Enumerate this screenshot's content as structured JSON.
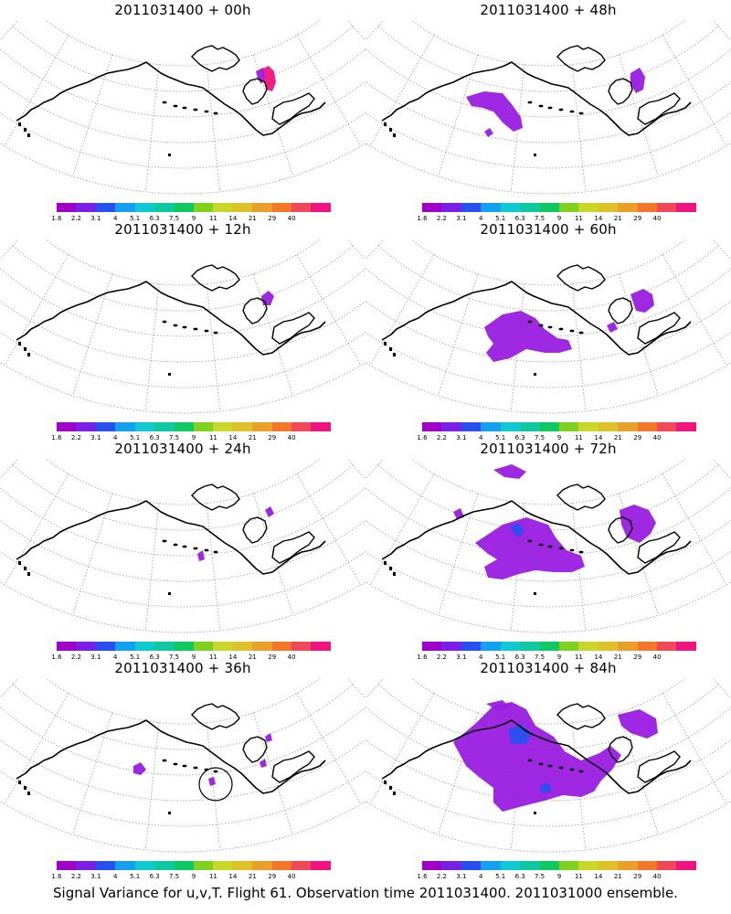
{
  "footer": "Signal Variance for u,v,T. Flight 61. Observation time 2011031400. 2011031000 ensemble.",
  "colorbar": {
    "colors": [
      "#a000c8",
      "#7820e8",
      "#2850f0",
      "#14a0f0",
      "#10c8d0",
      "#10c8a0",
      "#10c860",
      "#80d020",
      "#c8d828",
      "#e0c028",
      "#e8a028",
      "#f07828",
      "#f04858",
      "#f01480"
    ],
    "tick_labels": [
      "1.6",
      "2.2",
      "3.1",
      "4",
      "5.1",
      "6.3",
      "7.5",
      "9",
      "11",
      "14",
      "21",
      "29",
      "40"
    ]
  },
  "panels": [
    {
      "id": "p00",
      "title": "2011031400 + 00h",
      "lead_hours": 0
    },
    {
      "id": "p48",
      "title": "2011031400 + 48h",
      "lead_hours": 48
    },
    {
      "id": "p12",
      "title": "2011031400 + 12h",
      "lead_hours": 12
    },
    {
      "id": "p60",
      "title": "2011031400 + 60h",
      "lead_hours": 60
    },
    {
      "id": "p24",
      "title": "2011031400 + 24h",
      "lead_hours": 24
    },
    {
      "id": "p72",
      "title": "2011031400 + 72h",
      "lead_hours": 72
    },
    {
      "id": "p36",
      "title": "2011031400 + 36h",
      "lead_hours": 36
    },
    {
      "id": "p84",
      "title": "2011031400 + 84h",
      "lead_hours": 84
    }
  ],
  "colors": {
    "signal_main": "#9a1ee0",
    "signal_peak": "#f01480",
    "signal_core": "#2850f0",
    "coast": "#000000",
    "grid": "#888888"
  }
}
